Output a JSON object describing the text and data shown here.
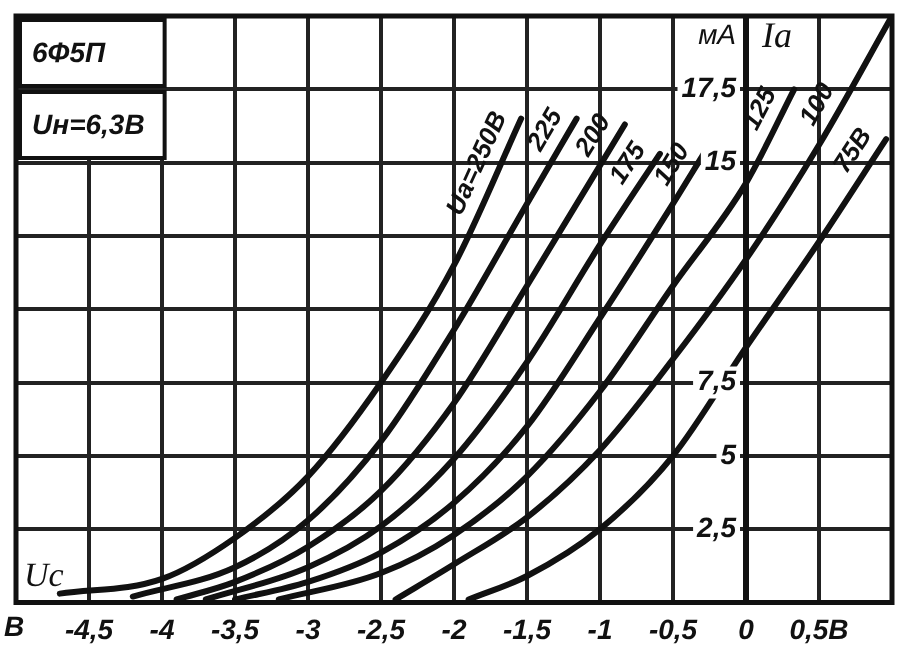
{
  "chart_data": {
    "type": "line",
    "title": "6Ф5П",
    "subtitle": "Uн=6,3В",
    "xlabel": "Uс",
    "ylabel": "Iа",
    "annotations": [
      "В",
      "мА"
    ],
    "xlim": [
      -5,
      1
    ],
    "ylim": [
      0,
      20
    ],
    "xticks": [
      {
        "value": -4.5,
        "label": "-4,5"
      },
      {
        "value": -4,
        "label": "-4"
      },
      {
        "value": -3.5,
        "label": "-3,5"
      },
      {
        "value": -3,
        "label": "-3"
      },
      {
        "value": -2.5,
        "label": "-2,5"
      },
      {
        "value": -2,
        "label": "-2"
      },
      {
        "value": -1.5,
        "label": "-1,5"
      },
      {
        "value": -1,
        "label": "-1"
      },
      {
        "value": -0.5,
        "label": "-0,5"
      },
      {
        "value": 0,
        "label": "0"
      },
      {
        "value": 0.5,
        "label": "0,5В"
      }
    ],
    "yticks": [
      {
        "value": 2.5,
        "label": "2,5"
      },
      5,
      {
        "value": 7.5,
        "label": "7,5"
      },
      {
        "value": 10,
        "label": null
      },
      {
        "value": 12.5,
        "label": null
      },
      15,
      {
        "value": 17.5,
        "label": "17,5"
      }
    ],
    "grid": true,
    "marker": "none",
    "line_style": "solid",
    "series": [
      {
        "name": "Ua=250В",
        "color": "#111111",
        "x": [
          -4.7,
          -4,
          -3.5,
          -3,
          -2.5,
          -2,
          -1.54
        ],
        "values": [
          0.3,
          0.8,
          2.2,
          4.3,
          7.5,
          11.5,
          16.5
        ]
      },
      {
        "name": "225",
        "color": "#111111",
        "x": [
          -4.2,
          -3.5,
          -3,
          -2.5,
          -2,
          -1.5,
          -1.16
        ],
        "values": [
          0.2,
          1.2,
          2.8,
          5.5,
          9.3,
          13.6,
          16.5
        ]
      },
      {
        "name": "200",
        "color": "#111111",
        "x": [
          -3.9,
          -3.5,
          -3,
          -2.5,
          -2,
          -1.5,
          -0.83
        ],
        "values": [
          0.1,
          0.7,
          1.9,
          3.8,
          6.8,
          10.8,
          16.3
        ]
      },
      {
        "name": "175",
        "color": "#111111",
        "x": [
          -3.7,
          -3,
          -2.5,
          -2,
          -1.5,
          -1,
          -0.59
        ],
        "values": [
          0.1,
          1.2,
          2.6,
          4.9,
          8.2,
          12.2,
          15.3
        ]
      },
      {
        "name": "150",
        "color": "#111111",
        "x": [
          -3.5,
          -3,
          -2.5,
          -2,
          -1.5,
          -1,
          -0.5,
          -0.29
        ],
        "values": [
          0.1,
          0.7,
          1.7,
          3.4,
          6,
          9.7,
          13.6,
          15.3
        ]
      },
      {
        "name": "125",
        "color": "#111111",
        "x": [
          -3.2,
          -2.5,
          -2,
          -1.5,
          -1,
          -0.5,
          0,
          0.33
        ],
        "values": [
          0.1,
          1,
          2.3,
          4.3,
          7.2,
          10.8,
          14.3,
          17.5
        ]
      },
      {
        "name": "100",
        "color": "#111111",
        "x": [
          -2.4,
          -2,
          -1.5,
          -1,
          -0.5,
          0,
          0.5,
          1
        ],
        "values": [
          0.1,
          1.3,
          2.9,
          5.2,
          8.3,
          11.7,
          15.6,
          20
        ]
      },
      {
        "name": "75В",
        "color": "#111111",
        "x": [
          -1.9,
          -1.5,
          -1,
          -0.5,
          0,
          0.5,
          0.96
        ],
        "values": [
          0.1,
          0.9,
          2.5,
          5,
          8.7,
          12.3,
          15.8
        ]
      }
    ]
  }
}
